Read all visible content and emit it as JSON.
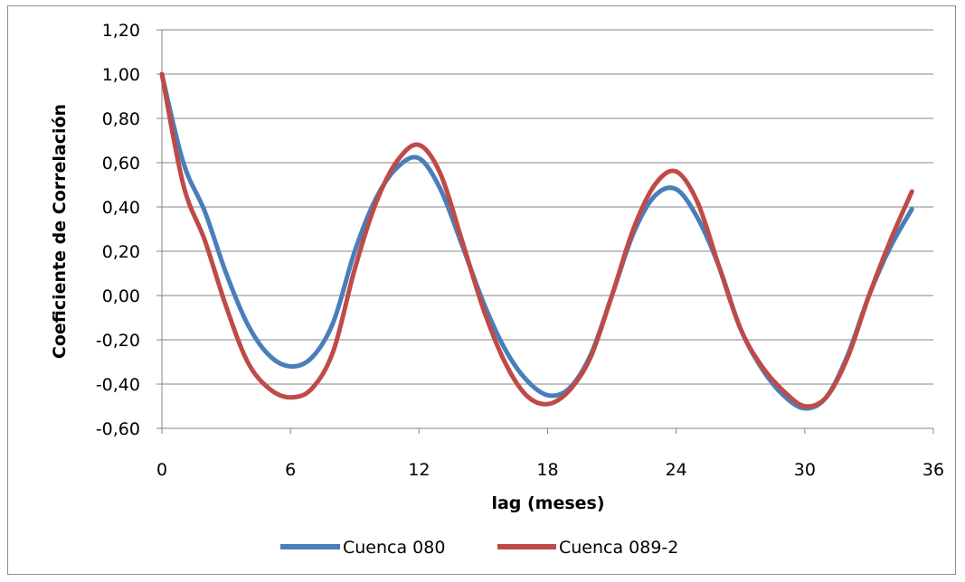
{
  "chart_data": {
    "type": "line",
    "title": "",
    "xlabel": "lag (meses)",
    "ylabel": "Coeficiente de Correlación",
    "xlim": [
      0,
      36
    ],
    "ylim": [
      -0.6,
      1.2
    ],
    "xticks": [
      0,
      6,
      12,
      18,
      24,
      30,
      36
    ],
    "xtick_labels": [
      "0",
      "6",
      "12",
      "18",
      "24",
      "30",
      "36"
    ],
    "yticks": [
      -0.6,
      -0.4,
      -0.2,
      0.0,
      0.2,
      0.4,
      0.6,
      0.8,
      1.0,
      1.2
    ],
    "ytick_labels": [
      "-0,60",
      "-0,40",
      "-0,20",
      "0,00",
      "0,20",
      "0,40",
      "0,60",
      "0,80",
      "1,00",
      "1,20"
    ],
    "grid": "horizontal",
    "legend_position": "bottom",
    "x": [
      0,
      1,
      2,
      3,
      4,
      5,
      6,
      7,
      8,
      9,
      10,
      11,
      12,
      13,
      14,
      15,
      16,
      17,
      18,
      19,
      20,
      21,
      22,
      23,
      24,
      25,
      26,
      27,
      28,
      29,
      30,
      31,
      32,
      33,
      34,
      35
    ],
    "series": [
      {
        "name": "Cuenca 080",
        "color": "#4a7ebb",
        "values": [
          1.0,
          0.6,
          0.38,
          0.1,
          -0.13,
          -0.27,
          -0.32,
          -0.28,
          -0.12,
          0.2,
          0.44,
          0.58,
          0.62,
          0.48,
          0.23,
          -0.03,
          -0.24,
          -0.38,
          -0.45,
          -0.42,
          -0.27,
          0.0,
          0.28,
          0.45,
          0.48,
          0.35,
          0.13,
          -0.15,
          -0.33,
          -0.45,
          -0.51,
          -0.46,
          -0.27,
          0.0,
          0.22,
          0.39
        ]
      },
      {
        "name": "Cuenca 089-2",
        "color": "#be4b48",
        "values": [
          1.0,
          0.5,
          0.25,
          -0.05,
          -0.3,
          -0.42,
          -0.46,
          -0.42,
          -0.25,
          0.12,
          0.42,
          0.61,
          0.68,
          0.55,
          0.25,
          -0.06,
          -0.3,
          -0.45,
          -0.49,
          -0.43,
          -0.28,
          0.0,
          0.3,
          0.5,
          0.56,
          0.42,
          0.13,
          -0.15,
          -0.32,
          -0.43,
          -0.5,
          -0.46,
          -0.28,
          0.0,
          0.25,
          0.47
        ]
      }
    ]
  }
}
